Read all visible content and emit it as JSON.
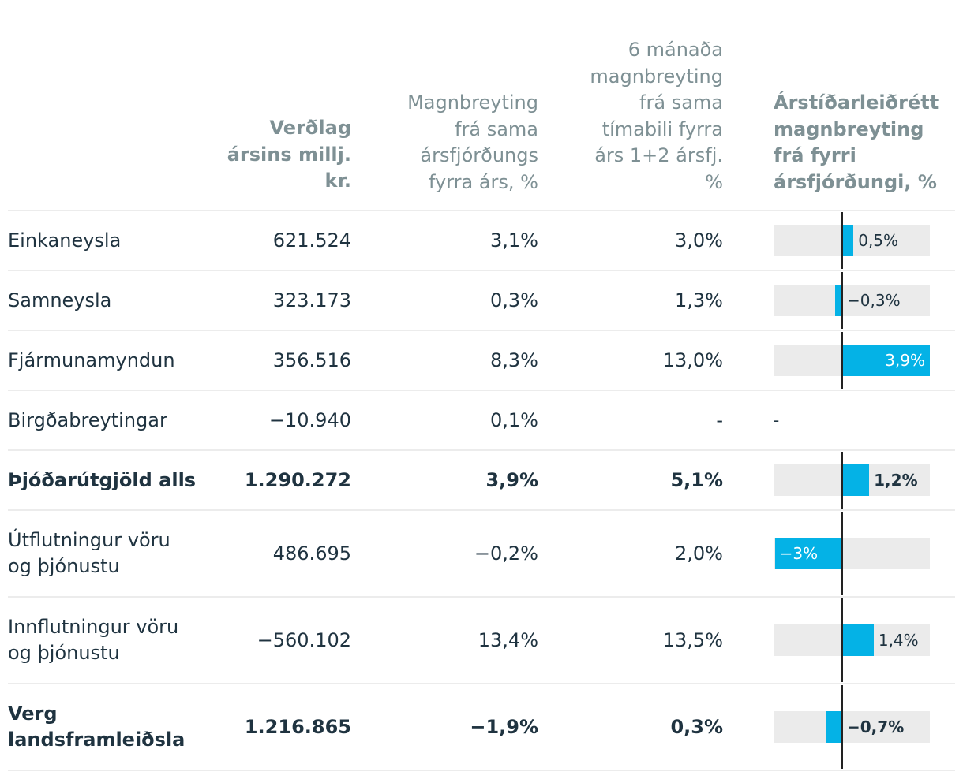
{
  "columns": {
    "col1": [
      "Verðlag",
      "ársins millj.",
      "kr."
    ],
    "col2": [
      "Magnbreyting",
      "frá sama",
      "ársfjórðungs",
      "fyrra árs, %"
    ],
    "col3": [
      "6 mánaða",
      "magnbreyting",
      "frá sama",
      "tímabili fyrra",
      "árs 1+2 ársfj.",
      "%"
    ],
    "col4": [
      "Árstíðarleiðrétt",
      "magnbreyting",
      "frá fyrri",
      "ársfjórðungi, %"
    ]
  },
  "rows": [
    {
      "label": [
        "Einkaneysla"
      ],
      "verdlag": "621.524",
      "arsfj": "3,1%",
      "sex_man": "3,0%",
      "chart_label": "0,5%",
      "bold": false
    },
    {
      "label": [
        "Samneysla"
      ],
      "verdlag": "323.173",
      "arsfj": "0,3%",
      "sex_man": "1,3%",
      "chart_label": "−0,3%",
      "bold": false
    },
    {
      "label": [
        "Fjármunamyndun"
      ],
      "verdlag": "356.516",
      "arsfj": "8,3%",
      "sex_man": "13,0%",
      "chart_label": "3,9%",
      "bold": false
    },
    {
      "label": [
        "Birgðabreytingar"
      ],
      "verdlag": "−10.940",
      "arsfj": "0,1%",
      "sex_man": "-",
      "chart_label": "-",
      "bold": false
    },
    {
      "label": [
        "Þjóðarútgjöld alls"
      ],
      "verdlag": "1.290.272",
      "arsfj": "3,9%",
      "sex_man": "5,1%",
      "chart_label": "1,2%",
      "bold": true
    },
    {
      "label": [
        "Útflutningur vöru",
        "og þjónustu"
      ],
      "verdlag": "486.695",
      "arsfj": "−0,2%",
      "sex_man": "2,0%",
      "chart_label": "−3%",
      "bold": false
    },
    {
      "label": [
        "Innflutningur vöru",
        "og þjónustu"
      ],
      "verdlag": "−560.102",
      "arsfj": "13,4%",
      "sex_man": "13,5%",
      "chart_label": "1,4%",
      "bold": false
    },
    {
      "label": [
        "Verg",
        "landsframleiðsla"
      ],
      "verdlag": "1.216.865",
      "arsfj": "−1,9%",
      "sex_man": "0,3%",
      "chart_label": "−0,7%",
      "bold": true
    }
  ],
  "chart_data": {
    "type": "bar",
    "title": "Árstíðarleiðrétt magnbreyting frá fyrri ársfjórðungi, %",
    "categories": [
      "Einkaneysla",
      "Samneysla",
      "Fjármunamyndun",
      "Birgðabreytingar",
      "Þjóðarútgjöld alls",
      "Útflutningur vöru og þjónustu",
      "Innflutningur vöru og þjónustu",
      "Verg landsframleiðsla"
    ],
    "values": [
      0.5,
      -0.3,
      3.9,
      null,
      1.2,
      -3.0,
      1.4,
      -0.7
    ],
    "xlim": [
      -3.0,
      3.9
    ],
    "orientation": "horizontal"
  },
  "colors": {
    "bar": "#04b2e6",
    "track": "#ebebeb",
    "header": "#7e9094",
    "text": "#1f3340"
  }
}
